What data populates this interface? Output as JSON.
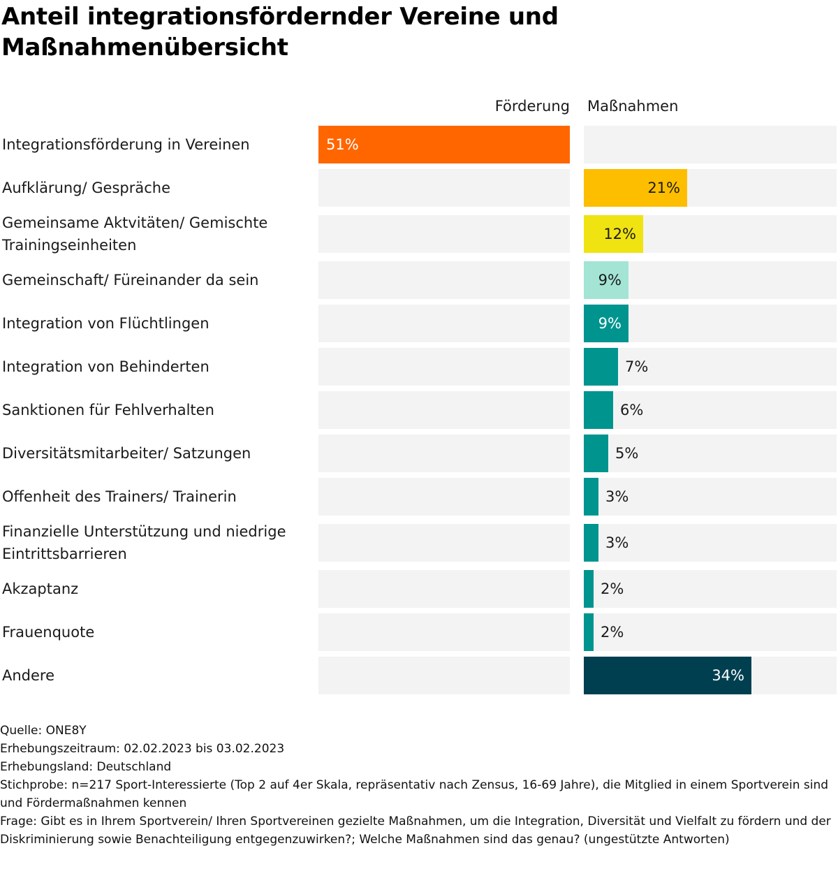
{
  "title": "Anteil integrationsfördernder Vereine und Maßnahmenübersicht",
  "columns": {
    "left": "Förderung",
    "right": "Maßnahmen"
  },
  "colors": {
    "foerderung": "#ff6600",
    "aufklaerung": "#fdbe00",
    "gemeinsam": "#f0e312",
    "gemeinschaft": "#a3e4d5",
    "teal": "#00948f",
    "andere": "#003f50",
    "track": "#f3f3f3"
  },
  "chart_data": {
    "type": "bar",
    "title": "Anteil integrationsfördernder Vereine und Maßnahmenübersicht",
    "unit": "%",
    "xlim": [
      0,
      51
    ],
    "categories": [
      "Integrationsförderung in Vereinen",
      "Aufklärung/ Gespräche",
      "Gemeinsame Aktvitäten/ Gemischte Trainingseinheiten",
      "Gemeinschaft/ Füreinander da sein",
      "Integration von Flüchtlingen",
      "Integration von Behinderten",
      "Sanktionen für Fehlverhalten",
      "Diversitätsmitarbeiter/ Satzungen",
      "Offenheit des Trainers/ Trainerin",
      "Finanzielle Unterstützung und niedrige Eintrittsbarrieren",
      "Akzaptanz",
      "Frauenquote",
      "Andere"
    ],
    "series": [
      {
        "name": "Förderung",
        "values": [
          51,
          null,
          null,
          null,
          null,
          null,
          null,
          null,
          null,
          null,
          null,
          null,
          null
        ]
      },
      {
        "name": "Maßnahmen",
        "values": [
          null,
          21,
          12,
          9,
          9,
          7,
          6,
          5,
          3,
          3,
          2,
          2,
          34
        ]
      }
    ],
    "value_labels": [
      "51%",
      "21%",
      "12%",
      "9%",
      "9%",
      "7%",
      "6%",
      "5%",
      "3%",
      "3%",
      "2%",
      "2%",
      "34%"
    ],
    "bar_colors": [
      "#ff6600",
      "#fdbe00",
      "#f0e312",
      "#a3e4d5",
      "#00948f",
      "#00948f",
      "#00948f",
      "#00948f",
      "#00948f",
      "#00948f",
      "#00948f",
      "#00948f",
      "#003f50"
    ],
    "label_colors": [
      "#ffffff",
      "#1a1a1a",
      "#1a1a1a",
      "#1a1a1a",
      "#ffffff",
      "#1a1a1a",
      "#1a1a1a",
      "#1a1a1a",
      "#1a1a1a",
      "#1a1a1a",
      "#1a1a1a",
      "#1a1a1a",
      "#ffffff"
    ]
  },
  "footer": {
    "source": "Quelle: ONE8Y",
    "period": "Erhebungszeitraum: 02.02.2023 bis 03.02.2023",
    "country": "Erhebungsland: Deutschland",
    "sample": "Stichprobe: n=217 Sport-Interessierte (Top 2 auf 4er Skala, repräsentativ nach Zensus, 16-69 Jahre), die Mitglied in einem Sportverein sind und Fördermaßnahmen kennen",
    "question": "Frage: Gibt es in Ihrem Sportverein/ Ihren Sportvereinen gezielte Maßnahmen, um die Integration, Diversität und Vielfalt zu fördern und der Diskriminierung sowie Benachteiligung entgegenzuwirken?; Welche Maßnahmen sind das genau? (ungestützte Antworten)"
  }
}
